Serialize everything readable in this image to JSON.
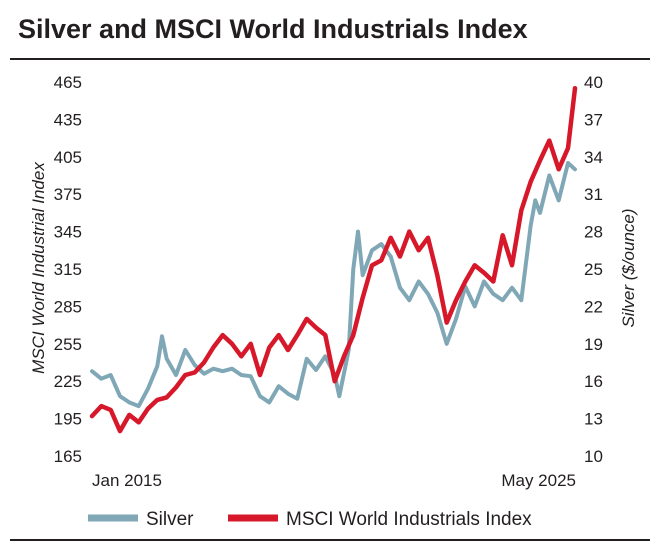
{
  "title": "Silver and MSCI World Industrials Index",
  "colors": {
    "silver": "#7fa7b6",
    "msci": "#d7182a",
    "text": "#231f20"
  },
  "chart_data": {
    "type": "line",
    "title": "Silver and MSCI World Industrials Index",
    "x_tick_labels": [
      "Jan 2015",
      "May 2025"
    ],
    "x_range": [
      "Jan 2015",
      "May 2025"
    ],
    "left_axis": {
      "label": "MSCI World Industrial Index",
      "ylim": [
        165,
        465
      ],
      "ticks": [
        165,
        195,
        225,
        255,
        285,
        315,
        345,
        375,
        405,
        435,
        465
      ]
    },
    "right_axis": {
      "label": "Silver ($/ounce)",
      "ylim": [
        10,
        40
      ],
      "ticks": [
        10,
        13,
        16,
        19,
        22,
        25,
        28,
        31,
        34,
        37,
        40
      ]
    },
    "grid": false,
    "legend_position": "bottom",
    "series": [
      {
        "name": "Silver",
        "axis": "right",
        "color": "#7fa7b6",
        "x": [
          2015.0,
          2015.2,
          2015.4,
          2015.6,
          2015.8,
          2016.0,
          2016.2,
          2016.4,
          2016.5,
          2016.6,
          2016.8,
          2017.0,
          2017.2,
          2017.4,
          2017.6,
          2017.8,
          2018.0,
          2018.2,
          2018.4,
          2018.6,
          2018.8,
          2019.0,
          2019.2,
          2019.4,
          2019.6,
          2019.8,
          2020.0,
          2020.2,
          2020.3,
          2020.5,
          2020.6,
          2020.7,
          2020.8,
          2021.0,
          2021.2,
          2021.4,
          2021.6,
          2021.8,
          2022.0,
          2022.2,
          2022.4,
          2022.6,
          2022.8,
          2023.0,
          2023.2,
          2023.4,
          2023.6,
          2023.8,
          2024.0,
          2024.2,
          2024.4,
          2024.5,
          2024.6,
          2024.8,
          2025.0,
          2025.2,
          2025.35
        ],
        "values": [
          16.8,
          16.2,
          16.5,
          14.8,
          14.3,
          14.0,
          15.4,
          17.2,
          19.6,
          17.8,
          16.5,
          18.5,
          17.3,
          16.6,
          17.0,
          16.8,
          17.0,
          16.5,
          16.4,
          14.8,
          14.3,
          15.6,
          15.0,
          14.6,
          17.8,
          16.9,
          18.0,
          16.5,
          14.8,
          18.5,
          25.0,
          28.0,
          24.5,
          26.5,
          27.0,
          26.0,
          23.5,
          22.5,
          24.0,
          23.0,
          21.5,
          19.0,
          21.0,
          23.6,
          22.0,
          24.0,
          23.0,
          22.5,
          23.5,
          22.5,
          28.5,
          30.5,
          29.5,
          32.5,
          30.5,
          33.5,
          33.0
        ]
      },
      {
        "name": "MSCI World Industrials Index",
        "axis": "left",
        "color": "#d7182a",
        "x": [
          2015.0,
          2015.2,
          2015.4,
          2015.6,
          2015.8,
          2016.0,
          2016.2,
          2016.4,
          2016.6,
          2016.8,
          2017.0,
          2017.2,
          2017.4,
          2017.6,
          2017.8,
          2018.0,
          2018.2,
          2018.4,
          2018.6,
          2018.8,
          2019.0,
          2019.2,
          2019.4,
          2019.6,
          2019.8,
          2020.0,
          2020.2,
          2020.4,
          2020.6,
          2020.8,
          2021.0,
          2021.2,
          2021.4,
          2021.6,
          2021.8,
          2022.0,
          2022.2,
          2022.4,
          2022.6,
          2022.8,
          2023.0,
          2023.2,
          2023.4,
          2023.6,
          2023.8,
          2024.0,
          2024.2,
          2024.4,
          2024.6,
          2024.8,
          2025.0,
          2025.2,
          2025.35
        ],
        "values": [
          197,
          205,
          202,
          185,
          198,
          192,
          203,
          210,
          212,
          220,
          230,
          232,
          240,
          252,
          262,
          255,
          245,
          255,
          230,
          252,
          262,
          250,
          262,
          275,
          268,
          262,
          225,
          245,
          262,
          292,
          318,
          322,
          340,
          325,
          345,
          330,
          340,
          310,
          272,
          290,
          305,
          318,
          312,
          305,
          342,
          318,
          362,
          385,
          402,
          418,
          395,
          412,
          460
        ]
      }
    ]
  },
  "legend": [
    {
      "label": "Silver",
      "color": "#7fa7b6"
    },
    {
      "label": "MSCI World Industrials Index",
      "color": "#d7182a"
    }
  ]
}
